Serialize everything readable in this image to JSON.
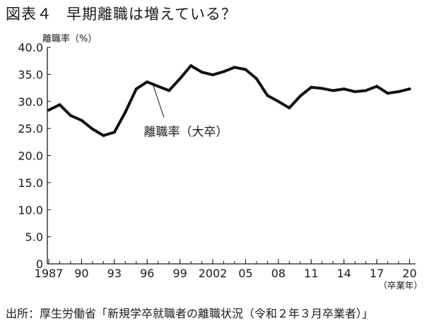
{
  "figure": {
    "number": "図表４",
    "title": "早期離職は増えている？",
    "source": "出所：厚生労働省「新規学卒就職者の離職状況（令和２年３月卒業者）」"
  },
  "chart_data": {
    "type": "line",
    "title": "早期離職は増えている？",
    "xlabel": "（卒業年）",
    "ylabel": "離職率（%）",
    "ylim": [
      0,
      40
    ],
    "yticks": [
      0,
      5,
      10,
      15,
      20,
      25,
      30,
      35,
      40
    ],
    "ytick_labels": [
      "0",
      "5.0",
      "10.0",
      "15.0",
      "20.0",
      "25.0",
      "30.0",
      "35.0",
      "40.0"
    ],
    "xlim": [
      1987,
      2020
    ],
    "xticks": [
      1987,
      1990,
      1993,
      1996,
      1999,
      2002,
      2005,
      2008,
      2011,
      2014,
      2017,
      2020
    ],
    "xtick_labels": [
      "1987",
      "90",
      "93",
      "96",
      "99",
      "2002",
      "05",
      "08",
      "11",
      "14",
      "17",
      "20"
    ],
    "grid": false,
    "legend": "none",
    "series": [
      {
        "name": "離職率（大卒）",
        "color": "#111111",
        "x": [
          1987,
          1988,
          1989,
          1990,
          1991,
          1992,
          1993,
          1994,
          1995,
          1996,
          1997,
          1998,
          1999,
          2000,
          2001,
          2002,
          2003,
          2004,
          2005,
          2006,
          2007,
          2008,
          2009,
          2010,
          2011,
          2012,
          2013,
          2014,
          2015,
          2016,
          2017,
          2018,
          2019,
          2020
        ],
        "values": [
          28.4,
          29.4,
          27.4,
          26.5,
          24.9,
          23.7,
          24.3,
          28.0,
          32.3,
          33.6,
          32.8,
          32.0,
          34.2,
          36.6,
          35.4,
          34.9,
          35.5,
          36.3,
          35.9,
          34.2,
          31.1,
          30.0,
          28.8,
          31.0,
          32.6,
          32.4,
          32.0,
          32.3,
          31.8,
          32.0,
          32.8,
          31.5,
          31.8,
          32.3
        ]
      }
    ],
    "annotations": [
      {
        "text": "離職率（大卒）",
        "x": 1996.5,
        "y": 33.3
      }
    ]
  }
}
